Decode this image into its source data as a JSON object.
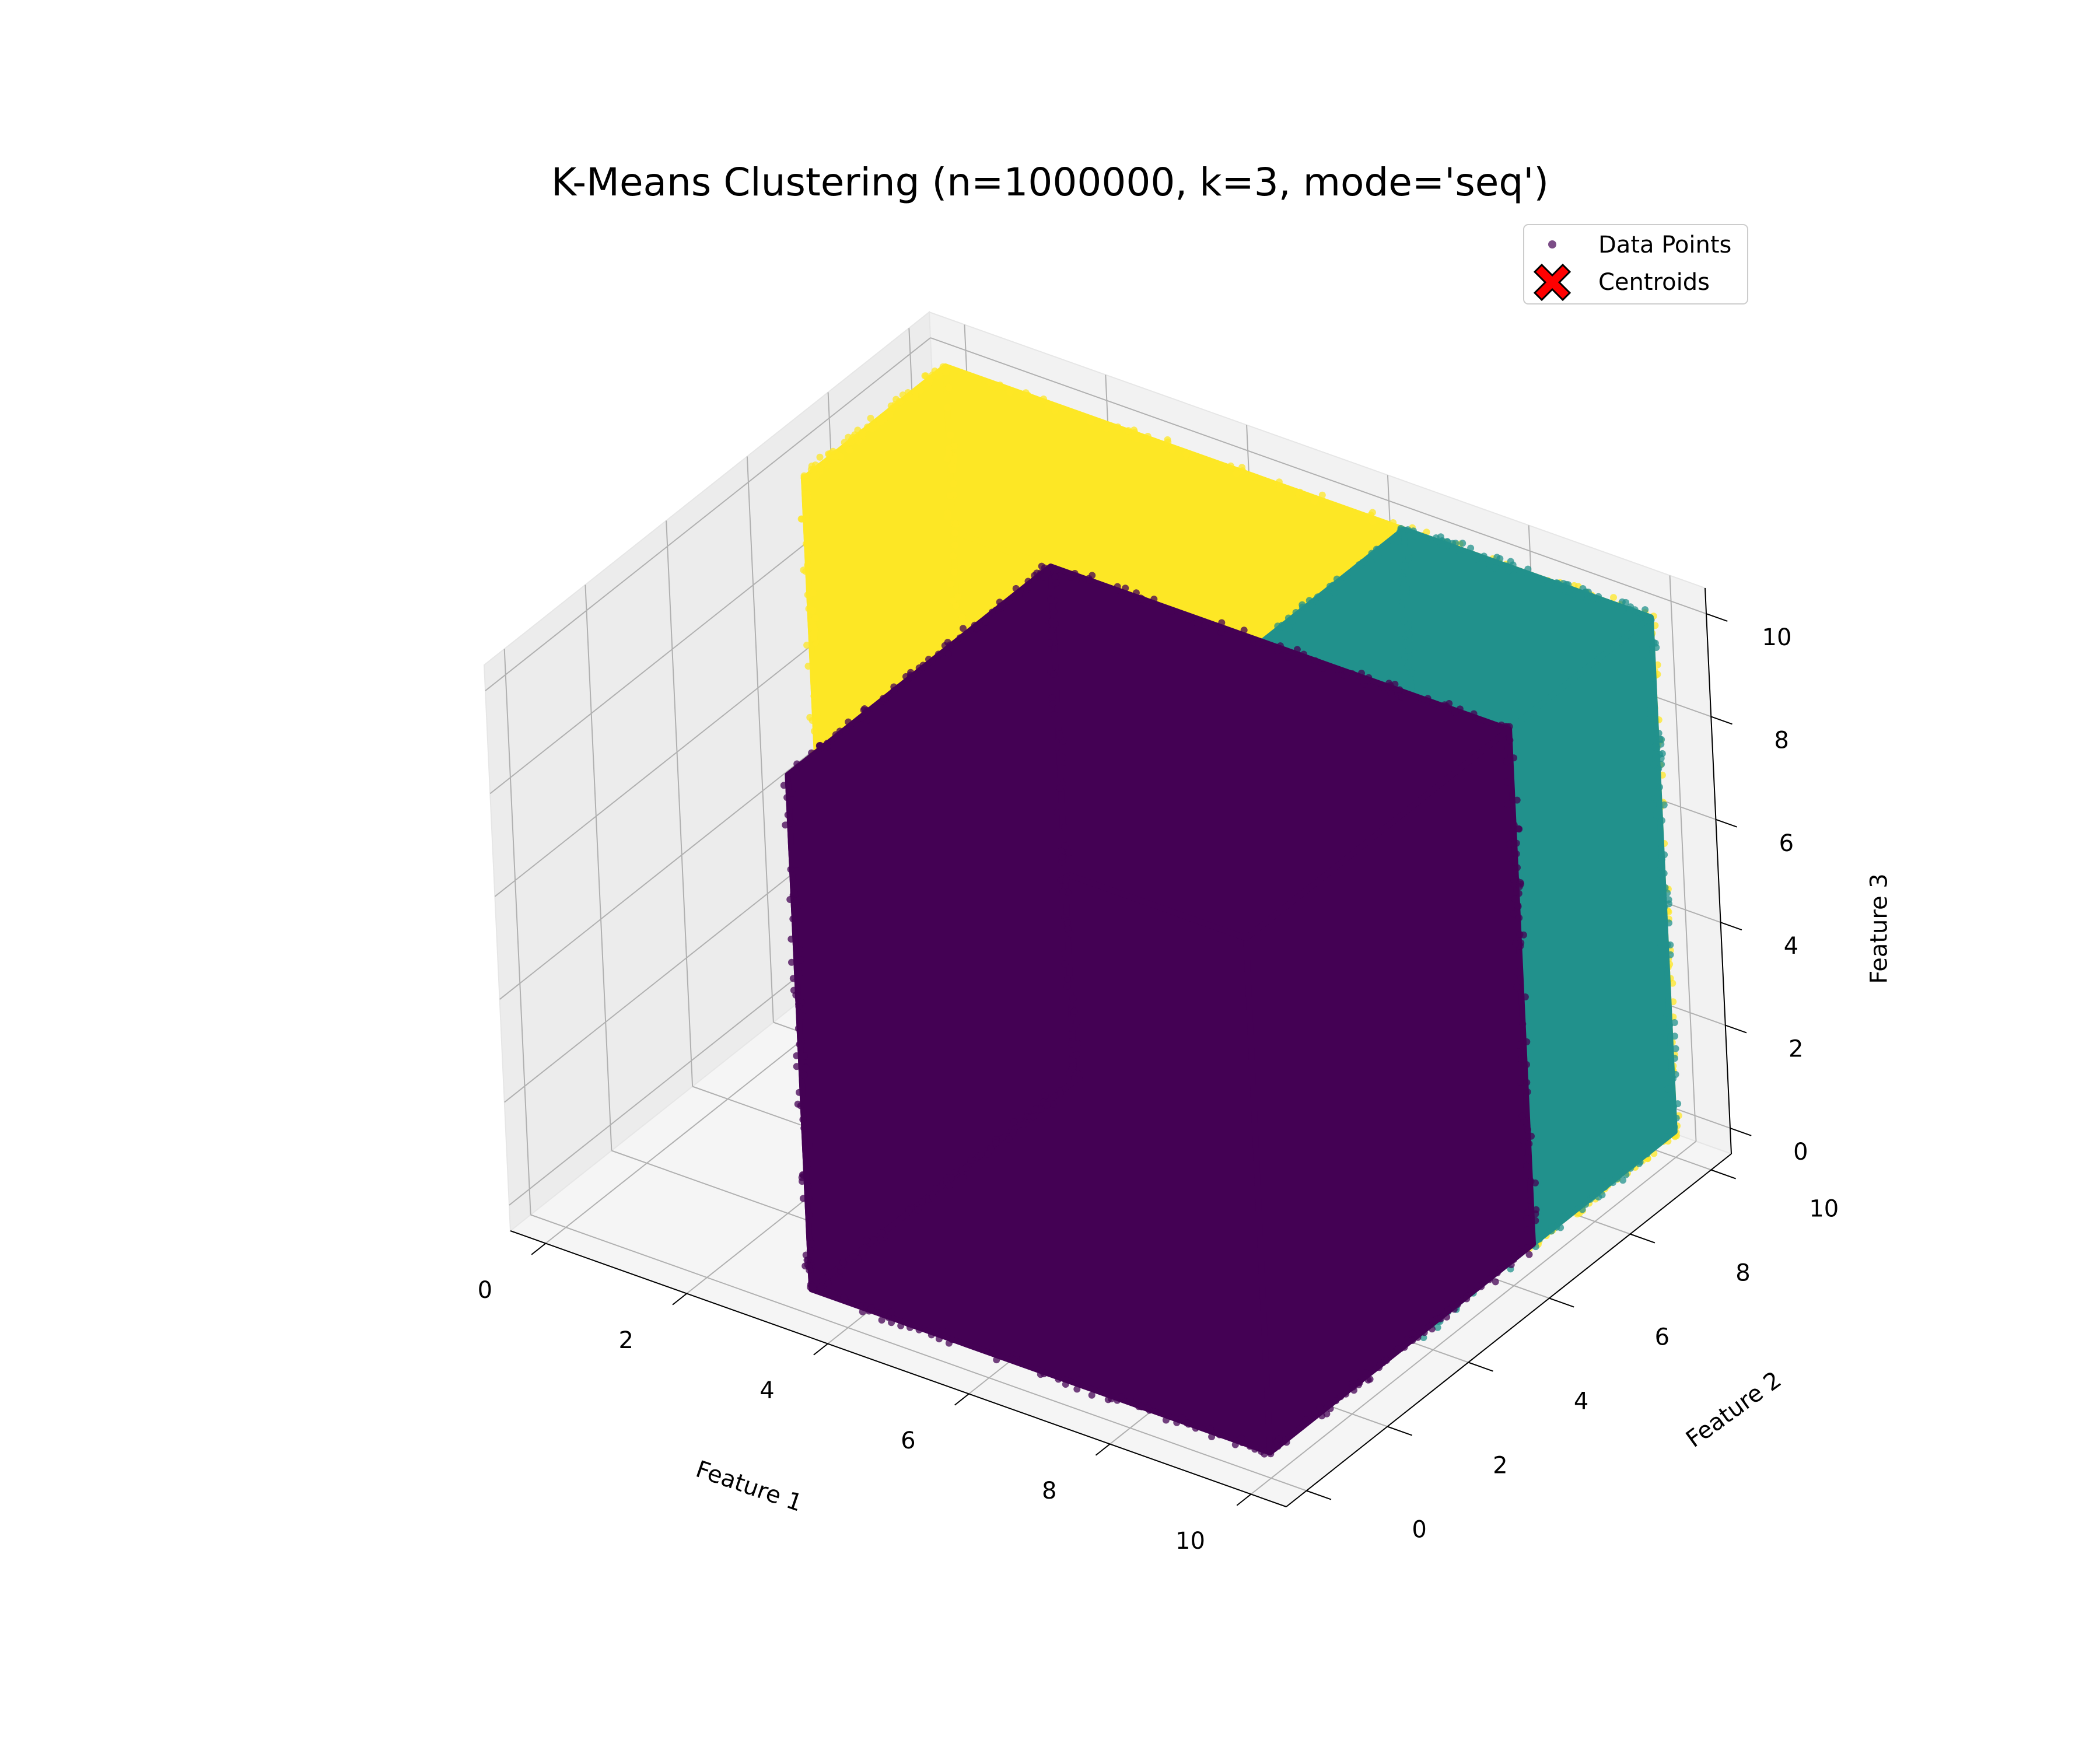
{
  "chart_data": {
    "type": "scatter",
    "projection": "3d",
    "title": "K-Means Clustering (n=1000000, k=3, mode='seq')",
    "axes": {
      "x": {
        "label": "Feature 1",
        "ticks": [
          0,
          2,
          4,
          6,
          8,
          10
        ]
      },
      "y": {
        "label": "Feature 2",
        "ticks": [
          0,
          2,
          4,
          6,
          8,
          10
        ]
      },
      "z": {
        "label": "Feature 3",
        "ticks": [
          0,
          2,
          4,
          6,
          8,
          10
        ]
      }
    },
    "xlim": [
      -0.5,
      10.5
    ],
    "ylim": [
      -0.5,
      10.5
    ],
    "zlim": [
      -0.5,
      10.5
    ],
    "grid": true,
    "colormap": "viridis",
    "series": [
      {
        "name": "Data Points",
        "marker": "dot"
      },
      {
        "name": "Centroids",
        "marker": "x",
        "color": "#ff0000"
      }
    ],
    "clusters": [
      {
        "color": "#fde725",
        "x": [
          0,
          10
        ],
        "y": [
          6.5,
          10
        ],
        "z": [
          0,
          10
        ]
      },
      {
        "color": "#21918c",
        "x": [
          6.5,
          10
        ],
        "y": [
          3.5,
          10
        ],
        "z": [
          0,
          10
        ]
      },
      {
        "color": "#440154",
        "x": [
          3.5,
          10
        ],
        "y": [
          0,
          6.5
        ],
        "z": [
          0,
          10
        ]
      }
    ],
    "legend": {
      "position": "top-right"
    }
  }
}
